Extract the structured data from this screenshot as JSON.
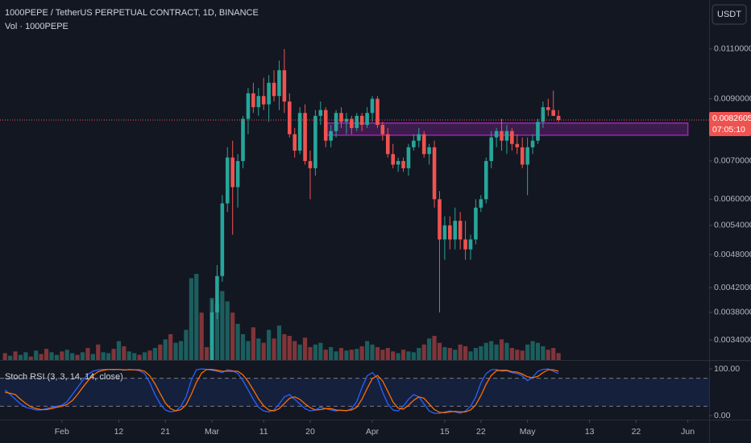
{
  "chart_data": [
    {
      "type": "candlestick",
      "title": "1000PEPE / TetherUS PERPETUAL CONTRACT, 1D, BINANCE",
      "subtitle": "Vol · 1000PEPE",
      "currency": "USDT",
      "log": true,
      "grid": false,
      "up_color": "#26a69a",
      "down_color": "#ef5350",
      "ylim": [
        0.003135,
        0.01341
      ],
      "yticks": [
        {
          "value": 0.011,
          "label": "0.0110000"
        },
        {
          "value": 0.009,
          "label": "0.0090000"
        },
        {
          "value": 0.007,
          "label": "0.0070000"
        },
        {
          "value": 0.006,
          "label": "0.0060000"
        },
        {
          "value": 0.0054,
          "label": "0.0054000"
        },
        {
          "value": 0.0048,
          "label": "0.0048000"
        },
        {
          "value": 0.0042,
          "label": "0.0042000"
        },
        {
          "value": 0.0038,
          "label": "0.0038000"
        },
        {
          "value": 0.0034,
          "label": "0.0034000"
        }
      ],
      "xticks": [
        {
          "value": "Feb 1",
          "label": "Feb"
        },
        {
          "value": "Feb 12",
          "label": "12"
        },
        {
          "value": "Feb 21",
          "label": "21"
        },
        {
          "value": "Mar 1",
          "label": "Mar"
        },
        {
          "value": "Mar 11",
          "label": "11"
        },
        {
          "value": "Mar 20",
          "label": "20"
        },
        {
          "value": "Apr 1",
          "label": "Apr"
        },
        {
          "value": "Apr 15",
          "label": "15"
        },
        {
          "value": "Apr 22",
          "label": "22"
        },
        {
          "value": "May 1",
          "label": "May"
        },
        {
          "value": "May 13",
          "label": "13"
        },
        {
          "value": "May 22",
          "label": "22"
        },
        {
          "value": "Jun 1",
          "label": "Jun"
        }
      ],
      "last_price": 0.0082605,
      "last_price_color": "#ef5350",
      "countdown": "07:05:10",
      "zone": {
        "start": "Mar 23",
        "end": "Jun 1",
        "low": 0.00777,
        "high": 0.00816,
        "color": "#9c27b0"
      },
      "x": [
        "Mar 1",
        "Mar 2",
        "Mar 3",
        "Mar 4",
        "Mar 5",
        "Mar 6",
        "Mar 7",
        "Mar 8",
        "Mar 9",
        "Mar 10",
        "Mar 11",
        "Mar 12",
        "Mar 13",
        "Mar 14",
        "Mar 15",
        "Mar 16",
        "Mar 17",
        "Mar 18",
        "Mar 19",
        "Mar 20",
        "Mar 21",
        "Mar 22",
        "Mar 23",
        "Mar 24",
        "Mar 25",
        "Mar 26",
        "Mar 27",
        "Mar 28",
        "Mar 29",
        "Mar 30",
        "Mar 31",
        "Apr 1",
        "Apr 2",
        "Apr 3",
        "Apr 4",
        "Apr 5",
        "Apr 6",
        "Apr 7",
        "Apr 8",
        "Apr 9",
        "Apr 10",
        "Apr 11",
        "Apr 12",
        "Apr 13",
        "Apr 14",
        "Apr 15",
        "Apr 16",
        "Apr 17",
        "Apr 18",
        "Apr 19",
        "Apr 20",
        "Apr 21",
        "Apr 22",
        "Apr 23",
        "Apr 24",
        "Apr 25",
        "Apr 26",
        "Apr 27",
        "Apr 28",
        "Apr 29",
        "Apr 30",
        "May 1",
        "May 2",
        "May 3",
        "May 4",
        "May 5",
        "May 6",
        "May 7"
      ],
      "open": [
        0.0031,
        0.0038,
        0.0044,
        0.0059,
        0.0071,
        0.0063,
        0.007,
        0.0083,
        0.0092,
        0.0087,
        0.0091,
        0.0088,
        0.0096,
        0.0091,
        0.0101,
        0.0089,
        0.0078,
        0.0073,
        0.0085,
        0.007,
        0.0068,
        0.0084,
        0.0086,
        0.0076,
        0.0079,
        0.0085,
        0.0082,
        0.0083,
        0.008,
        0.0084,
        0.0081,
        0.0085,
        0.009,
        0.0081,
        0.0078,
        0.0072,
        0.0069,
        0.007,
        0.0068,
        0.0074,
        0.0076,
        0.0078,
        0.0072,
        0.0074,
        0.006,
        0.0051,
        0.0054,
        0.0051,
        0.0055,
        0.0051,
        0.0049,
        0.0051,
        0.0058,
        0.006,
        0.007,
        0.0077,
        0.0079,
        0.0076,
        0.0079,
        0.0075,
        0.0074,
        0.0069,
        0.0074,
        0.0076,
        0.0082,
        0.0087,
        0.0086,
        0.0084
      ],
      "high": [
        0.004,
        0.0046,
        0.0061,
        0.0074,
        0.0076,
        0.0072,
        0.0084,
        0.0094,
        0.0096,
        0.0094,
        0.0098,
        0.0099,
        0.0101,
        0.0105,
        0.011,
        0.0092,
        0.008,
        0.0087,
        0.0088,
        0.0073,
        0.0086,
        0.0089,
        0.0087,
        0.0081,
        0.0086,
        0.0087,
        0.0085,
        0.0084,
        0.0085,
        0.0085,
        0.0087,
        0.0091,
        0.0091,
        0.0082,
        0.008,
        0.0075,
        0.0071,
        0.0071,
        0.0075,
        0.0078,
        0.008,
        0.0079,
        0.0075,
        0.0076,
        0.0062,
        0.0056,
        0.0056,
        0.0058,
        0.0057,
        0.0055,
        0.0052,
        0.006,
        0.0061,
        0.0071,
        0.0079,
        0.008,
        0.0083,
        0.0081,
        0.008,
        0.0078,
        0.0077,
        0.0077,
        0.0078,
        0.0083,
        0.0089,
        0.009,
        0.0093,
        0.0086
      ],
      "low": [
        0.003,
        0.0037,
        0.0043,
        0.0057,
        0.0052,
        0.0058,
        0.0068,
        0.0078,
        0.0085,
        0.0084,
        0.0086,
        0.0082,
        0.0089,
        0.0086,
        0.0085,
        0.0077,
        0.0071,
        0.0072,
        0.0069,
        0.006,
        0.0066,
        0.0081,
        0.0074,
        0.0074,
        0.0077,
        0.008,
        0.0078,
        0.0078,
        0.0079,
        0.0079,
        0.008,
        0.0082,
        0.008,
        0.0076,
        0.0071,
        0.0068,
        0.0067,
        0.0067,
        0.0066,
        0.0073,
        0.0074,
        0.0071,
        0.0069,
        0.0058,
        0.0038,
        0.0047,
        0.0049,
        0.0049,
        0.0049,
        0.0047,
        0.0047,
        0.005,
        0.0057,
        0.0059,
        0.0068,
        0.0074,
        0.0073,
        0.0072,
        0.0073,
        0.0072,
        0.0068,
        0.0061,
        0.0072,
        0.0075,
        0.008,
        0.0084,
        0.0084,
        0.0082
      ],
      "close": [
        0.0038,
        0.0044,
        0.0059,
        0.0071,
        0.0063,
        0.007,
        0.0083,
        0.0092,
        0.0087,
        0.0091,
        0.0088,
        0.0096,
        0.0091,
        0.0101,
        0.0089,
        0.0078,
        0.0073,
        0.0085,
        0.007,
        0.0068,
        0.0084,
        0.0086,
        0.0076,
        0.0079,
        0.0085,
        0.0082,
        0.0083,
        0.008,
        0.0084,
        0.0081,
        0.0085,
        0.009,
        0.0081,
        0.0078,
        0.0072,
        0.0069,
        0.007,
        0.0068,
        0.0074,
        0.0076,
        0.0078,
        0.0072,
        0.0074,
        0.006,
        0.0051,
        0.0054,
        0.0051,
        0.0055,
        0.0051,
        0.0049,
        0.0051,
        0.0058,
        0.006,
        0.007,
        0.0077,
        0.0079,
        0.0076,
        0.0079,
        0.0075,
        0.0074,
        0.0069,
        0.0074,
        0.0076,
        0.0082,
        0.0087,
        0.0086,
        0.0084,
        0.0082605
      ],
      "volume": {
        "ylim": [
          0,
          100
        ],
        "x": [
          "Jan 21",
          "Jan 22",
          "Jan 23",
          "Jan 24",
          "Jan 25",
          "Jan 26",
          "Jan 27",
          "Jan 28",
          "Jan 29",
          "Jan 30",
          "Jan 31",
          "Feb 1",
          "Feb 2",
          "Feb 3",
          "Feb 4",
          "Feb 5",
          "Feb 6",
          "Feb 7",
          "Feb 8",
          "Feb 9",
          "Feb 10",
          "Feb 11",
          "Feb 12",
          "Feb 13",
          "Feb 14",
          "Feb 15",
          "Feb 16",
          "Feb 17",
          "Feb 18",
          "Feb 19",
          "Feb 20",
          "Feb 21",
          "Feb 22",
          "Feb 23",
          "Feb 24",
          "Feb 25",
          "Feb 26",
          "Feb 27",
          "Feb 28",
          "Feb 29",
          "Mar 1",
          "Mar 2",
          "Mar 3",
          "Mar 4",
          "Mar 5",
          "Mar 6",
          "Mar 7",
          "Mar 8",
          "Mar 9",
          "Mar 10",
          "Mar 11",
          "Mar 12",
          "Mar 13",
          "Mar 14",
          "Mar 15",
          "Mar 16",
          "Mar 17",
          "Mar 18",
          "Mar 19",
          "Mar 20",
          "Mar 21",
          "Mar 22",
          "Mar 23",
          "Mar 24",
          "Mar 25",
          "Mar 26",
          "Mar 27",
          "Mar 28",
          "Mar 29",
          "Mar 30",
          "Mar 31",
          "Apr 1",
          "Apr 2",
          "Apr 3",
          "Apr 4",
          "Apr 5",
          "Apr 6",
          "Apr 7",
          "Apr 8",
          "Apr 9",
          "Apr 10",
          "Apr 11",
          "Apr 12",
          "Apr 13",
          "Apr 14",
          "Apr 15",
          "Apr 16",
          "Apr 17",
          "Apr 18",
          "Apr 19",
          "Apr 20",
          "Apr 21",
          "Apr 22",
          "Apr 23",
          "Apr 24",
          "Apr 25",
          "Apr 26",
          "Apr 27",
          "Apr 28",
          "Apr 29",
          "Apr 30",
          "May 1",
          "May 2",
          "May 3",
          "May 4",
          "May 5",
          "May 6",
          "May 7"
        ],
        "values": [
          8,
          5,
          10,
          6,
          9,
          4,
          11,
          7,
          13,
          9,
          6,
          10,
          12,
          8,
          6,
          9,
          14,
          7,
          18,
          9,
          8,
          13,
          22,
          16,
          10,
          8,
          6,
          9,
          11,
          14,
          18,
          24,
          30,
          20,
          22,
          35,
          95,
          100,
          55,
          15,
          72,
          65,
          80,
          68,
          55,
          42,
          30,
          22,
          38,
          25,
          20,
          35,
          25,
          40,
          30,
          28,
          22,
          18,
          26,
          15,
          18,
          20,
          12,
          15,
          10,
          14,
          11,
          12,
          13,
          16,
          22,
          18,
          15,
          12,
          14,
          10,
          8,
          12,
          10,
          9,
          14,
          18,
          25,
          28,
          20,
          15,
          14,
          12,
          18,
          16,
          10,
          14,
          16,
          20,
          22,
          18,
          24,
          20,
          14,
          12,
          11,
          18,
          22,
          20,
          16,
          12,
          14,
          8
        ],
        "colors": [
          "#ef5350",
          "#26a69a",
          "#ef5350",
          "#26a69a",
          "#26a69a",
          "#ef5350",
          "#26a69a",
          "#ef5350",
          "#ef5350",
          "#26a69a",
          "#26a69a",
          "#ef5350",
          "#26a69a",
          "#26a69a",
          "#ef5350",
          "#26a69a",
          "#ef5350",
          "#26a69a",
          "#ef5350",
          "#26a69a",
          "#26a69a",
          "#ef5350",
          "#26a69a",
          "#ef5350",
          "#26a69a",
          "#26a69a",
          "#ef5350",
          "#26a69a",
          "#ef5350",
          "#26a69a",
          "#ef5350",
          "#26a69a",
          "#ef5350",
          "#26a69a",
          "#26a69a",
          "#26a69a",
          "#26a69a",
          "#26a69a",
          "#ef5350",
          "#ef5350",
          "#26a69a",
          "#26a69a",
          "#26a69a",
          "#26a69a",
          "#ef5350",
          "#26a69a",
          "#26a69a",
          "#26a69a",
          "#ef5350",
          "#26a69a",
          "#ef5350",
          "#26a69a",
          "#ef5350",
          "#26a69a",
          "#ef5350",
          "#ef5350",
          "#ef5350",
          "#26a69a",
          "#ef5350",
          "#ef5350",
          "#26a69a",
          "#26a69a",
          "#ef5350",
          "#26a69a",
          "#26a69a",
          "#ef5350",
          "#26a69a",
          "#ef5350",
          "#26a69a",
          "#ef5350",
          "#26a69a",
          "#26a69a",
          "#ef5350",
          "#ef5350",
          "#ef5350",
          "#ef5350",
          "#26a69a",
          "#ef5350",
          "#26a69a",
          "#26a69a",
          "#26a69a",
          "#ef5350",
          "#26a69a",
          "#ef5350",
          "#ef5350",
          "#26a69a",
          "#ef5350",
          "#26a69a",
          "#ef5350",
          "#ef5350",
          "#26a69a",
          "#26a69a",
          "#26a69a",
          "#26a69a",
          "#26a69a",
          "#26a69a",
          "#ef5350",
          "#26a69a",
          "#ef5350",
          "#ef5350",
          "#ef5350",
          "#26a69a",
          "#26a69a",
          "#26a69a",
          "#26a69a",
          "#ef5350",
          "#ef5350",
          "#ef5350"
        ]
      }
    },
    {
      "type": "line",
      "title": "Stoch RSI (3, 3, 14, 14, close)",
      "ylim": [
        -8.6,
        117.2
      ],
      "yticks": [
        {
          "value": 100,
          "label": "100.00"
        },
        {
          "value": 0,
          "label": "0.00"
        }
      ],
      "band": [
        20,
        80
      ],
      "band_color": "#2962ff",
      "x": [
        "Jan 21",
        "Jan 22",
        "Jan 23",
        "Jan 24",
        "Jan 25",
        "Jan 26",
        "Jan 27",
        "Jan 28",
        "Jan 29",
        "Jan 30",
        "Jan 31",
        "Feb 1",
        "Feb 2",
        "Feb 3",
        "Feb 4",
        "Feb 5",
        "Feb 6",
        "Feb 7",
        "Feb 8",
        "Feb 9",
        "Feb 10",
        "Feb 11",
        "Feb 12",
        "Feb 13",
        "Feb 14",
        "Feb 15",
        "Feb 16",
        "Feb 17",
        "Feb 18",
        "Feb 19",
        "Feb 20",
        "Feb 21",
        "Feb 22",
        "Feb 23",
        "Feb 24",
        "Feb 25",
        "Feb 26",
        "Feb 27",
        "Feb 28",
        "Feb 29",
        "Mar 1",
        "Mar 2",
        "Mar 3",
        "Mar 4",
        "Mar 5",
        "Mar 6",
        "Mar 7",
        "Mar 8",
        "Mar 9",
        "Mar 10",
        "Mar 11",
        "Mar 12",
        "Mar 13",
        "Mar 14",
        "Mar 15",
        "Mar 16",
        "Mar 17",
        "Mar 18",
        "Mar 19",
        "Mar 20",
        "Mar 21",
        "Mar 22",
        "Mar 23",
        "Mar 24",
        "Mar 25",
        "Mar 26",
        "Mar 27",
        "Mar 28",
        "Mar 29",
        "Mar 30",
        "Mar 31",
        "Apr 1",
        "Apr 2",
        "Apr 3",
        "Apr 4",
        "Apr 5",
        "Apr 6",
        "Apr 7",
        "Apr 8",
        "Apr 9",
        "Apr 10",
        "Apr 11",
        "Apr 12",
        "Apr 13",
        "Apr 14",
        "Apr 15",
        "Apr 16",
        "Apr 17",
        "Apr 18",
        "Apr 19",
        "Apr 20",
        "Apr 21",
        "Apr 22",
        "Apr 23",
        "Apr 24",
        "Apr 25",
        "Apr 26",
        "Apr 27",
        "Apr 28",
        "Apr 29",
        "Apr 30",
        "May 1",
        "May 2",
        "May 3",
        "May 4",
        "May 5",
        "May 6",
        "May 7"
      ],
      "series": [
        {
          "color": "#2962ff",
          "values": [
            55,
            45,
            35,
            25,
            18,
            15,
            12,
            12,
            15,
            18,
            20,
            22,
            30,
            45,
            60,
            75,
            88,
            95,
            98,
            99,
            99,
            98,
            99,
            97,
            99,
            98,
            96,
            90,
            70,
            45,
            25,
            12,
            8,
            10,
            20,
            40,
            75,
            98,
            100,
            99,
            97,
            95,
            92,
            98,
            96,
            90,
            75,
            55,
            35,
            18,
            10,
            8,
            12,
            25,
            40,
            45,
            35,
            25,
            15,
            10,
            12,
            18,
            15,
            12,
            10,
            12,
            10,
            15,
            30,
            60,
            85,
            92,
            80,
            50,
            25,
            12,
            10,
            20,
            35,
            45,
            40,
            25,
            10,
            5,
            5,
            8,
            10,
            8,
            5,
            10,
            20,
            40,
            70,
            90,
            98,
            99,
            95,
            96,
            92,
            90,
            85,
            75,
            82,
            95,
            99,
            100,
            95,
            90
          ]
        },
        {
          "color": "#ff6d00",
          "values": [
            50,
            48,
            45,
            35,
            26,
            19,
            15,
            13,
            13,
            15,
            18,
            20,
            24,
            32,
            45,
            60,
            74,
            86,
            94,
            97,
            99,
            99,
            99,
            98,
            98,
            98,
            98,
            95,
            85,
            68,
            47,
            27,
            15,
            10,
            13,
            23,
            45,
            71,
            91,
            99,
            99,
            97,
            95,
            95,
            95,
            95,
            87,
            73,
            55,
            36,
            21,
            12,
            10,
            15,
            26,
            37,
            40,
            35,
            25,
            17,
            12,
            13,
            15,
            15,
            12,
            11,
            11,
            12,
            18,
            35,
            58,
            79,
            86,
            74,
            52,
            29,
            16,
            14,
            22,
            33,
            40,
            37,
            25,
            13,
            7,
            6,
            8,
            9,
            8,
            8,
            12,
            23,
            43,
            67,
            86,
            96,
            97,
            97,
            94,
            93,
            89,
            83,
            81,
            84,
            92,
            98,
            98,
            95
          ]
        }
      ]
    }
  ]
}
